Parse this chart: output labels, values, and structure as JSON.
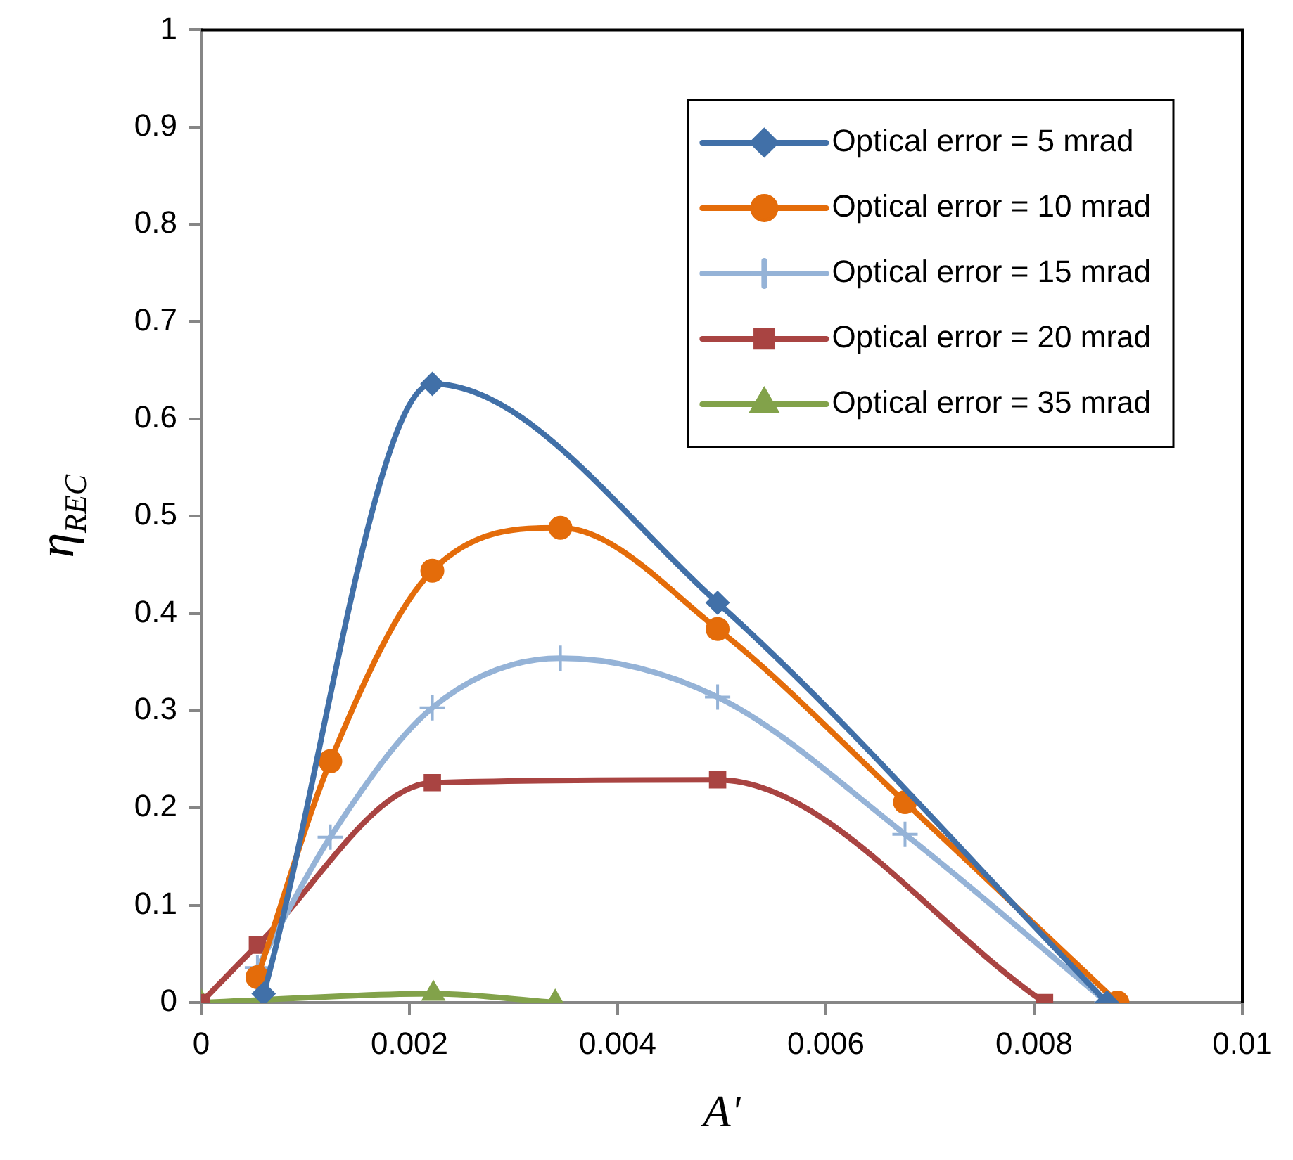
{
  "chart_data": {
    "type": "line",
    "xlabel": "A'",
    "ylabel": "η$_{REC}$",
    "xlim": [
      0,
      0.01
    ],
    "ylim": [
      0,
      1
    ],
    "xticks": [
      0,
      0.002,
      0.004,
      0.006,
      0.008,
      0.01
    ],
    "yticks": [
      0,
      0.1,
      0.2,
      0.3,
      0.4,
      0.5,
      0.6,
      0.7,
      0.8,
      0.9,
      1
    ],
    "legend": "top right",
    "series": [
      {
        "name": "Optical error = 5 mrad",
        "color": "#4170a8",
        "marker": "diamond",
        "x": [
          0.0006,
          0.00222,
          0.00496,
          0.0087
        ],
        "values": [
          0.009,
          0.636,
          0.411,
          0
        ]
      },
      {
        "name": "Optical error = 10 mrad",
        "color": "#e46c0a",
        "marker": "circle",
        "x": [
          0.00054,
          0.00124,
          0.00222,
          0.00345,
          0.00496,
          0.00676,
          0.0088
        ],
        "values": [
          0.026,
          0.248,
          0.444,
          0.488,
          0.384,
          0.206,
          0
        ]
      },
      {
        "name": "Optical error = 15 mrad",
        "color": "#95b3d7",
        "marker": "cross",
        "x": [
          0.00054,
          0.00124,
          0.00222,
          0.00345,
          0.00496,
          0.00676,
          0.0087
        ],
        "values": [
          0.036,
          0.17,
          0.303,
          0.354,
          0.314,
          0.173,
          0
        ]
      },
      {
        "name": "Optical error = 20 mrad",
        "color": "#a94442",
        "marker": "square",
        "x": [
          0,
          0.00054,
          0.00222,
          0.00496,
          0.0081
        ],
        "values": [
          0,
          0.059,
          0.226,
          0.229,
          0
        ]
      },
      {
        "name": "Optical error = 35 mrad",
        "color": "#82a24a",
        "marker": "triangle",
        "x": [
          0,
          0.00223,
          0.0034
        ],
        "values": [
          0,
          0.009,
          0
        ]
      }
    ]
  }
}
